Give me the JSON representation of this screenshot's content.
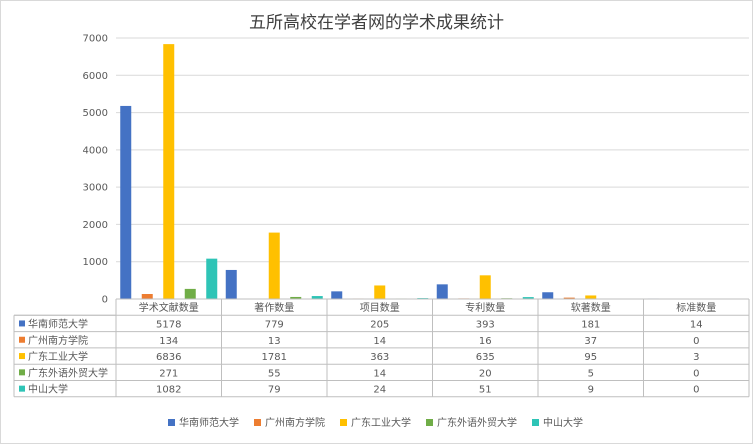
{
  "chart_data": {
    "type": "bar",
    "title": "五所高校在学者网的学术成果统计",
    "categories": [
      "学术文献数量",
      "著作数量",
      "项目数量",
      "专利数量",
      "软著数量",
      "标准数量"
    ],
    "ylim": [
      0,
      7000
    ],
    "yticks": [
      0,
      1000,
      2000,
      3000,
      4000,
      5000,
      6000,
      7000
    ],
    "grid": true,
    "legend_position": "bottom",
    "data_table": true,
    "series": [
      {
        "name": "华南师范大学",
        "color": "#4472C4",
        "values": [
          5178,
          779,
          205,
          393,
          181,
          14
        ]
      },
      {
        "name": "广州南方学院",
        "color": "#ED7D31",
        "values": [
          134,
          13,
          14,
          16,
          37,
          0
        ]
      },
      {
        "name": "广东工业大学",
        "color": "#FFC000",
        "values": [
          6836,
          1781,
          363,
          635,
          95,
          3
        ]
      },
      {
        "name": "广东外语外贸大学",
        "color": "#70AD47",
        "values": [
          271,
          55,
          14,
          20,
          5,
          0
        ]
      },
      {
        "name": "中山大学",
        "color": "#2EC4B6",
        "values": [
          1082,
          79,
          24,
          51,
          9,
          0
        ]
      }
    ]
  }
}
